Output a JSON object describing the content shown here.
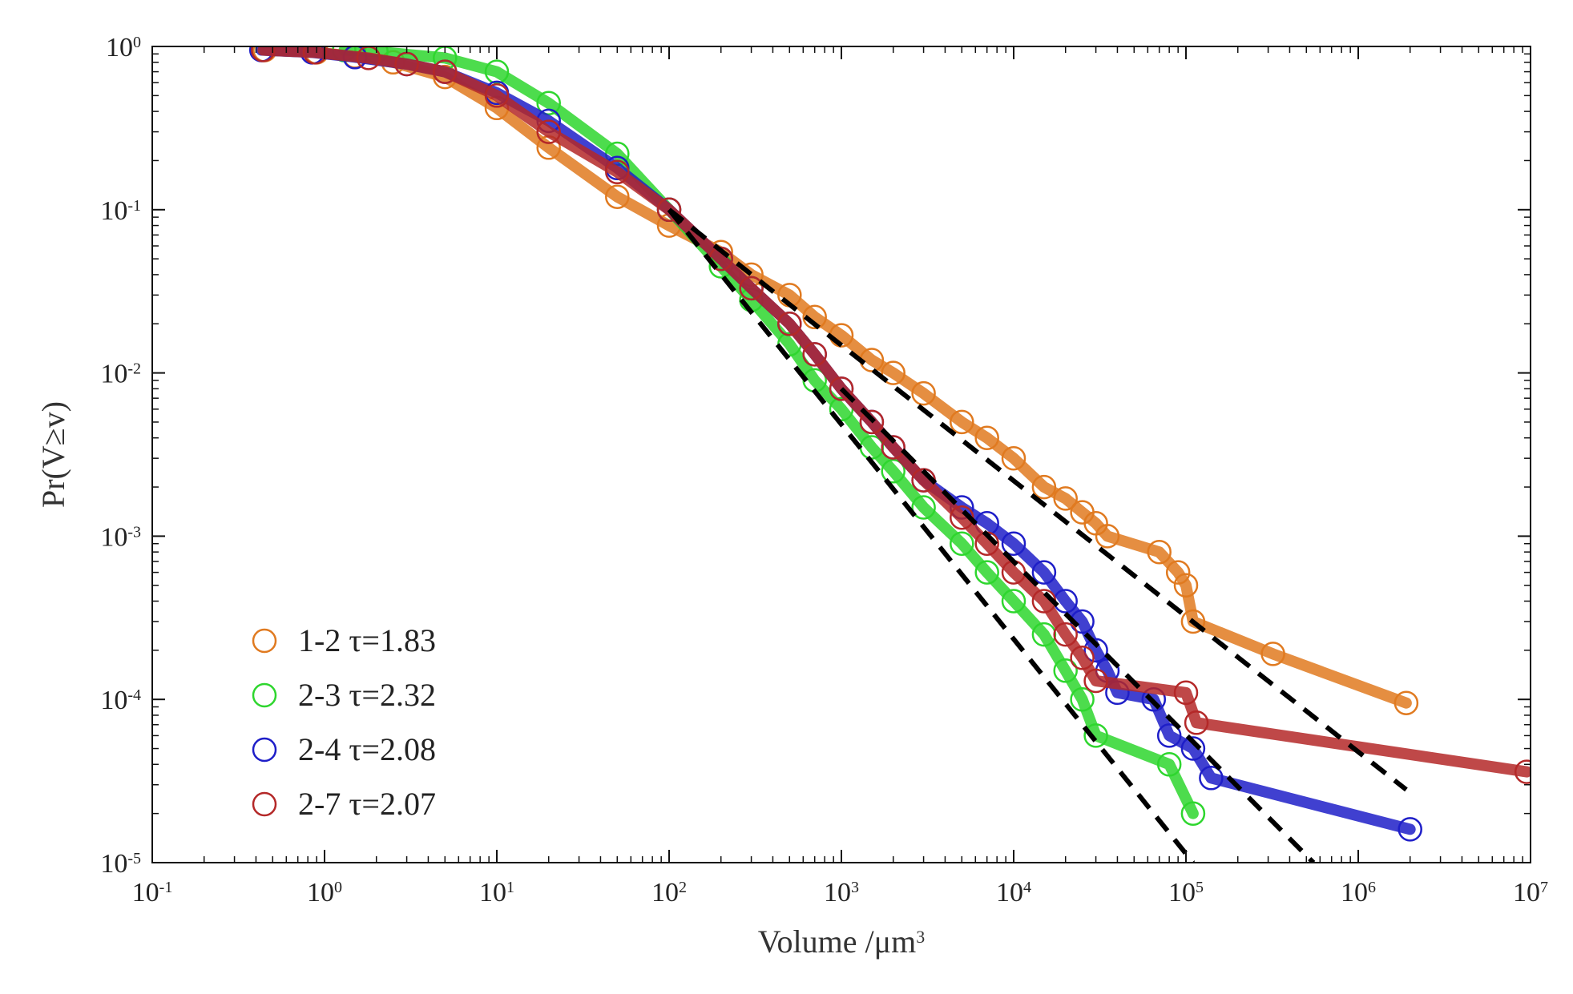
{
  "chart_data": {
    "type": "scatter",
    "title": "",
    "xlabel": "Volume /μm",
    "xlabel_superscript": "3",
    "ylabel": "Pr(V≥v)",
    "x_scale": "log",
    "y_scale": "log",
    "xlim": [
      0.1,
      10000000
    ],
    "ylim": [
      1e-05,
      1
    ],
    "grid": false,
    "legend_position": "lower-left",
    "x_ticks": [
      {
        "base": "10",
        "exp": "-1"
      },
      {
        "base": "10",
        "exp": "0"
      },
      {
        "base": "10",
        "exp": "1"
      },
      {
        "base": "10",
        "exp": "2"
      },
      {
        "base": "10",
        "exp": "3"
      },
      {
        "base": "10",
        "exp": "4"
      },
      {
        "base": "10",
        "exp": "5"
      },
      {
        "base": "10",
        "exp": "6"
      },
      {
        "base": "10",
        "exp": "7"
      }
    ],
    "y_ticks": [
      {
        "base": "10",
        "exp": "0"
      },
      {
        "base": "10",
        "exp": "-1"
      },
      {
        "base": "10",
        "exp": "-2"
      },
      {
        "base": "10",
        "exp": "-3"
      },
      {
        "base": "10",
        "exp": "-4"
      },
      {
        "base": "10",
        "exp": "-5"
      }
    ],
    "series": [
      {
        "name": "1-2 τ=1.83",
        "color": "#e07a20",
        "marker": "open-circle",
        "x": [
          0.45,
          0.9,
          1.5,
          2.5,
          5,
          10,
          20,
          50,
          100,
          200,
          300,
          500,
          700,
          1000,
          1500,
          2000,
          3000,
          5000,
          7000,
          10000,
          15000,
          20000,
          25000,
          30000,
          35000,
          70000,
          90000,
          100000,
          110000,
          320000,
          1900000
        ],
        "y": [
          0.95,
          0.92,
          0.87,
          0.8,
          0.65,
          0.42,
          0.24,
          0.12,
          0.08,
          0.055,
          0.04,
          0.03,
          0.022,
          0.017,
          0.012,
          0.01,
          0.0075,
          0.005,
          0.004,
          0.003,
          0.002,
          0.0017,
          0.0014,
          0.0012,
          0.001,
          0.0008,
          0.0006,
          0.0005,
          0.0003,
          0.00019,
          9.5e-05
        ]
      },
      {
        "name": "2-3 τ=2.32",
        "color": "#2ed62e",
        "marker": "open-circle",
        "x": [
          1.3,
          2,
          5,
          10,
          20,
          50,
          100,
          200,
          300,
          500,
          700,
          1000,
          1500,
          2000,
          3000,
          5000,
          7000,
          10000,
          15000,
          20000,
          25000,
          30000,
          80000,
          110000
        ],
        "y": [
          0.95,
          0.93,
          0.85,
          0.7,
          0.45,
          0.22,
          0.1,
          0.045,
          0.028,
          0.015,
          0.009,
          0.006,
          0.0035,
          0.0025,
          0.0015,
          0.0009,
          0.0006,
          0.0004,
          0.00025,
          0.00015,
          0.0001,
          6e-05,
          4e-05,
          2e-05
        ]
      },
      {
        "name": "2-4 τ=2.08",
        "color": "#1e1ec8",
        "marker": "open-circle",
        "x": [
          0.43,
          0.85,
          1.5,
          3,
          5,
          10,
          20,
          50,
          100,
          200,
          300,
          500,
          700,
          1000,
          1500,
          2000,
          3000,
          5000,
          7000,
          10000,
          15000,
          20000,
          25000,
          30000,
          35000,
          40000,
          65000,
          80000,
          110000,
          140000,
          2000000
        ],
        "y": [
          0.95,
          0.92,
          0.86,
          0.78,
          0.7,
          0.52,
          0.35,
          0.18,
          0.1,
          0.05,
          0.033,
          0.02,
          0.013,
          0.008,
          0.005,
          0.0035,
          0.0022,
          0.0015,
          0.0012,
          0.0009,
          0.0006,
          0.0004,
          0.0003,
          0.0002,
          0.00015,
          0.00011,
          0.0001,
          6e-05,
          5e-05,
          3.3e-05,
          1.6e-05
        ]
      },
      {
        "name": "2-7 τ=2.07",
        "color": "#b42828",
        "marker": "open-circle",
        "x": [
          0.44,
          0.88,
          1.8,
          3,
          5,
          10,
          20,
          50,
          100,
          200,
          300,
          500,
          700,
          1000,
          1500,
          2000,
          3000,
          5000,
          7000,
          10000,
          15000,
          20000,
          25000,
          30000,
          100000,
          115000,
          9500000
        ],
        "y": [
          0.95,
          0.92,
          0.85,
          0.78,
          0.7,
          0.5,
          0.3,
          0.17,
          0.1,
          0.05,
          0.033,
          0.02,
          0.013,
          0.008,
          0.005,
          0.0035,
          0.0022,
          0.0013,
          0.0009,
          0.0006,
          0.0004,
          0.00025,
          0.00018,
          0.00013,
          0.00011,
          7.2e-05,
          3.6e-05
        ]
      }
    ],
    "fit_lines": [
      {
        "style": "black-dashed",
        "x": [
          100,
          1900000
        ],
        "y": [
          0.1,
          2.8e-05
        ]
      },
      {
        "style": "black-dashed",
        "x": [
          100,
          110000
        ],
        "y": [
          0.1,
          1e-05
        ]
      },
      {
        "style": "black-dashed",
        "x": [
          1000,
          550000
        ],
        "y": [
          0.008,
          1e-05
        ]
      }
    ]
  }
}
